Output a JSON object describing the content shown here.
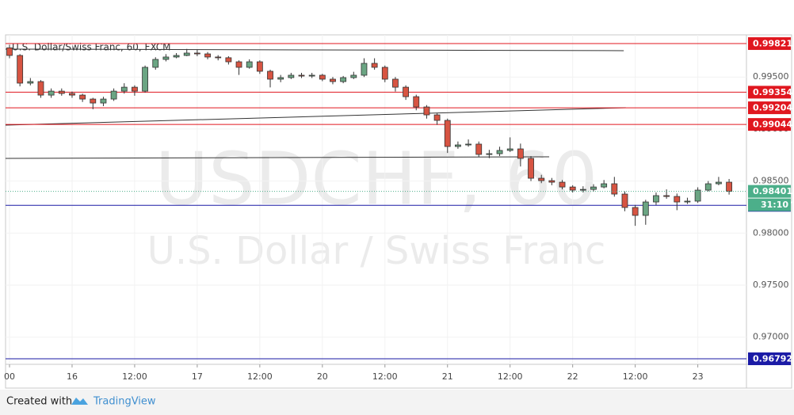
{
  "chart_data": {
    "type": "candlestick",
    "title": "U.S. Dollar/Swiss Franc, 60, FXCM",
    "watermark_symbol": "USDCHF, 60",
    "watermark_name": "U.S. Dollar / Swiss Franc",
    "footer_prefix": "Created with",
    "footer_brand": "TradingView",
    "up_color": "#6ba583",
    "down_color": "#d75442",
    "x": [
      0,
      2,
      4,
      6,
      8,
      10,
      12,
      14,
      16,
      18,
      20,
      22,
      24,
      26,
      28,
      30,
      32,
      34,
      36,
      38,
      40,
      42,
      44,
      46,
      48,
      50,
      52,
      54,
      56,
      58,
      60,
      62,
      64,
      66,
      68,
      70,
      72,
      74,
      76,
      78,
      80,
      82,
      84,
      86,
      88,
      90,
      92,
      94,
      96,
      98,
      100,
      102,
      104,
      106,
      108,
      110,
      112,
      114,
      116,
      118,
      120,
      122,
      124,
      126,
      128,
      130,
      132,
      134,
      136,
      138
    ],
    "open": [
      0.9978,
      0.99707,
      0.99441,
      0.99456,
      0.99326,
      0.99364,
      0.99342,
      0.99326,
      0.99288,
      0.9925,
      0.99288,
      0.99364,
      0.99402,
      0.99364,
      0.99593,
      0.99669,
      0.99692,
      0.99707,
      0.9973,
      0.99722,
      0.99692,
      0.99685,
      0.99646,
      0.99593,
      0.99646,
      0.99555,
      0.99479,
      0.99494,
      0.99517,
      0.99509,
      0.99517,
      0.99479,
      0.99456,
      0.99494,
      0.99517,
      0.99631,
      0.99593,
      0.99479,
      0.99402,
      0.99311,
      0.99212,
      0.99136,
      0.99083,
      0.98832,
      0.98847,
      0.98855,
      0.98756,
      0.98763,
      0.98794,
      0.98809,
      0.98718,
      0.98527,
      0.98504,
      0.98489,
      0.98443,
      0.98413,
      0.9842,
      0.98443,
      0.98474,
      0.98375,
      0.98246,
      0.9817,
      0.98299,
      0.9836,
      0.98352,
      0.98299,
      0.98307,
      0.98413,
      0.98474,
      0.98489
    ],
    "high": [
      0.9981,
      0.9972,
      0.9949,
      0.9947,
      0.9939,
      0.9939,
      0.9936,
      0.9934,
      0.993,
      0.9931,
      0.9939,
      0.9944,
      0.9942,
      0.9961,
      0.9969,
      0.9972,
      0.9973,
      0.9977,
      0.9976,
      0.9974,
      0.9971,
      0.997,
      0.9966,
      0.9967,
      0.9966,
      0.9957,
      0.9952,
      0.9954,
      0.9954,
      0.9954,
      0.9953,
      0.995,
      0.9951,
      0.9955,
      0.9968,
      0.9968,
      0.9961,
      0.995,
      0.9942,
      0.9933,
      0.9923,
      0.9915,
      0.991,
      0.9888,
      0.989,
      0.9888,
      0.988,
      0.9883,
      0.9892,
      0.9886,
      0.9874,
      0.9856,
      0.9853,
      0.9851,
      0.9846,
      0.9845,
      0.9847,
      0.9851,
      0.9854,
      0.984,
      0.9827,
      0.9832,
      0.9839,
      0.9842,
      0.9838,
      0.9834,
      0.9844,
      0.985,
      0.9854,
      0.9852
    ],
    "low": [
      0.9968,
      0.9941,
      0.9942,
      0.993,
      0.993,
      0.9932,
      0.993,
      0.9926,
      0.9919,
      0.9922,
      0.9927,
      0.9934,
      0.9932,
      0.9935,
      0.9957,
      0.9965,
      0.9968,
      0.997,
      0.997,
      0.9967,
      0.9966,
      0.9962,
      0.9952,
      0.9958,
      0.9953,
      0.994,
      0.9945,
      0.9948,
      0.9949,
      0.9949,
      0.9946,
      0.9943,
      0.9944,
      0.9948,
      0.995,
      0.9957,
      0.9945,
      0.9936,
      0.9928,
      0.9918,
      0.991,
      0.9904,
      0.9877,
      0.9881,
      0.9883,
      0.9873,
      0.9872,
      0.9874,
      0.9878,
      0.9864,
      0.985,
      0.9848,
      0.9846,
      0.9842,
      0.9839,
      0.9839,
      0.984,
      0.9843,
      0.9835,
      0.9821,
      0.9807,
      0.9808,
      0.9827,
      0.9833,
      0.9822,
      0.9828,
      0.9829,
      0.984,
      0.9846,
      0.9837
    ],
    "close": [
      0.99707,
      0.99441,
      0.99456,
      0.99326,
      0.99364,
      0.99342,
      0.99326,
      0.99288,
      0.9925,
      0.99288,
      0.99364,
      0.99402,
      0.99364,
      0.99593,
      0.99669,
      0.99692,
      0.99707,
      0.9973,
      0.99722,
      0.99692,
      0.99685,
      0.99646,
      0.99593,
      0.99646,
      0.99555,
      0.99479,
      0.99494,
      0.99517,
      0.99509,
      0.99517,
      0.99479,
      0.99456,
      0.99494,
      0.99517,
      0.99631,
      0.99593,
      0.99479,
      0.99402,
      0.99311,
      0.99212,
      0.99136,
      0.99083,
      0.98832,
      0.98847,
      0.98855,
      0.98756,
      0.98763,
      0.98794,
      0.98809,
      0.98718,
      0.98527,
      0.98504,
      0.98489,
      0.98443,
      0.98413,
      0.9842,
      0.98443,
      0.98474,
      0.98375,
      0.98246,
      0.9817,
      0.98299,
      0.9836,
      0.98352,
      0.98299,
      0.98307,
      0.98413,
      0.98474,
      0.98489,
      0.98401
    ],
    "levels": [
      {
        "price": 0.99821,
        "color": "#e0171f"
      },
      {
        "price": 0.99354,
        "color": "#e0171f"
      },
      {
        "price": 0.99204,
        "color": "#e0171f"
      },
      {
        "price": 0.99044,
        "color": "#e0171f"
      },
      {
        "price": 0.98267,
        "color": "#1a1aa6"
      },
      {
        "price": 0.96792,
        "color": "#1a1aa6"
      }
    ],
    "trend_lines": [
      {
        "x": [
          -0.76,
          117.8
        ],
        "y": [
          0.99768,
          0.99753
        ]
      },
      {
        "x": [
          -0.76,
          118.2
        ],
        "y": [
          0.99037,
          0.99205
        ]
      },
      {
        "x": [
          -0.76,
          103.5
        ],
        "y": [
          0.98718,
          0.98733
        ]
      }
    ],
    "last_price": 0.98401,
    "countdown": "31:10",
    "last_color": "#4caf8a",
    "xlim": [
      -0.76,
      141.33
    ],
    "ylim": [
      0.96739,
      0.99905
    ],
    "xticks": [
      {
        "value": 0,
        "label": "00"
      },
      {
        "value": 12,
        "label": "16"
      },
      {
        "value": 24,
        "label": "12:00"
      },
      {
        "value": 36,
        "label": "17"
      },
      {
        "value": 48,
        "label": "12:00"
      },
      {
        "value": 60,
        "label": "20"
      },
      {
        "value": 72,
        "label": "12:00"
      },
      {
        "value": 84,
        "label": "21"
      },
      {
        "value": 96,
        "label": "12:00"
      },
      {
        "value": 108,
        "label": "22"
      },
      {
        "value": 120,
        "label": "12:00"
      },
      {
        "value": 132,
        "label": "23"
      }
    ],
    "yticks": [
      {
        "value": 0.995,
        "label": "0.99500"
      },
      {
        "value": 0.99,
        "label": "0.99000"
      },
      {
        "value": 0.985,
        "label": "0.98500"
      },
      {
        "value": 0.98,
        "label": "0.98000"
      },
      {
        "value": 0.975,
        "label": "0.97500"
      },
      {
        "value": 0.97,
        "label": "0.97000"
      }
    ],
    "grid": true
  }
}
